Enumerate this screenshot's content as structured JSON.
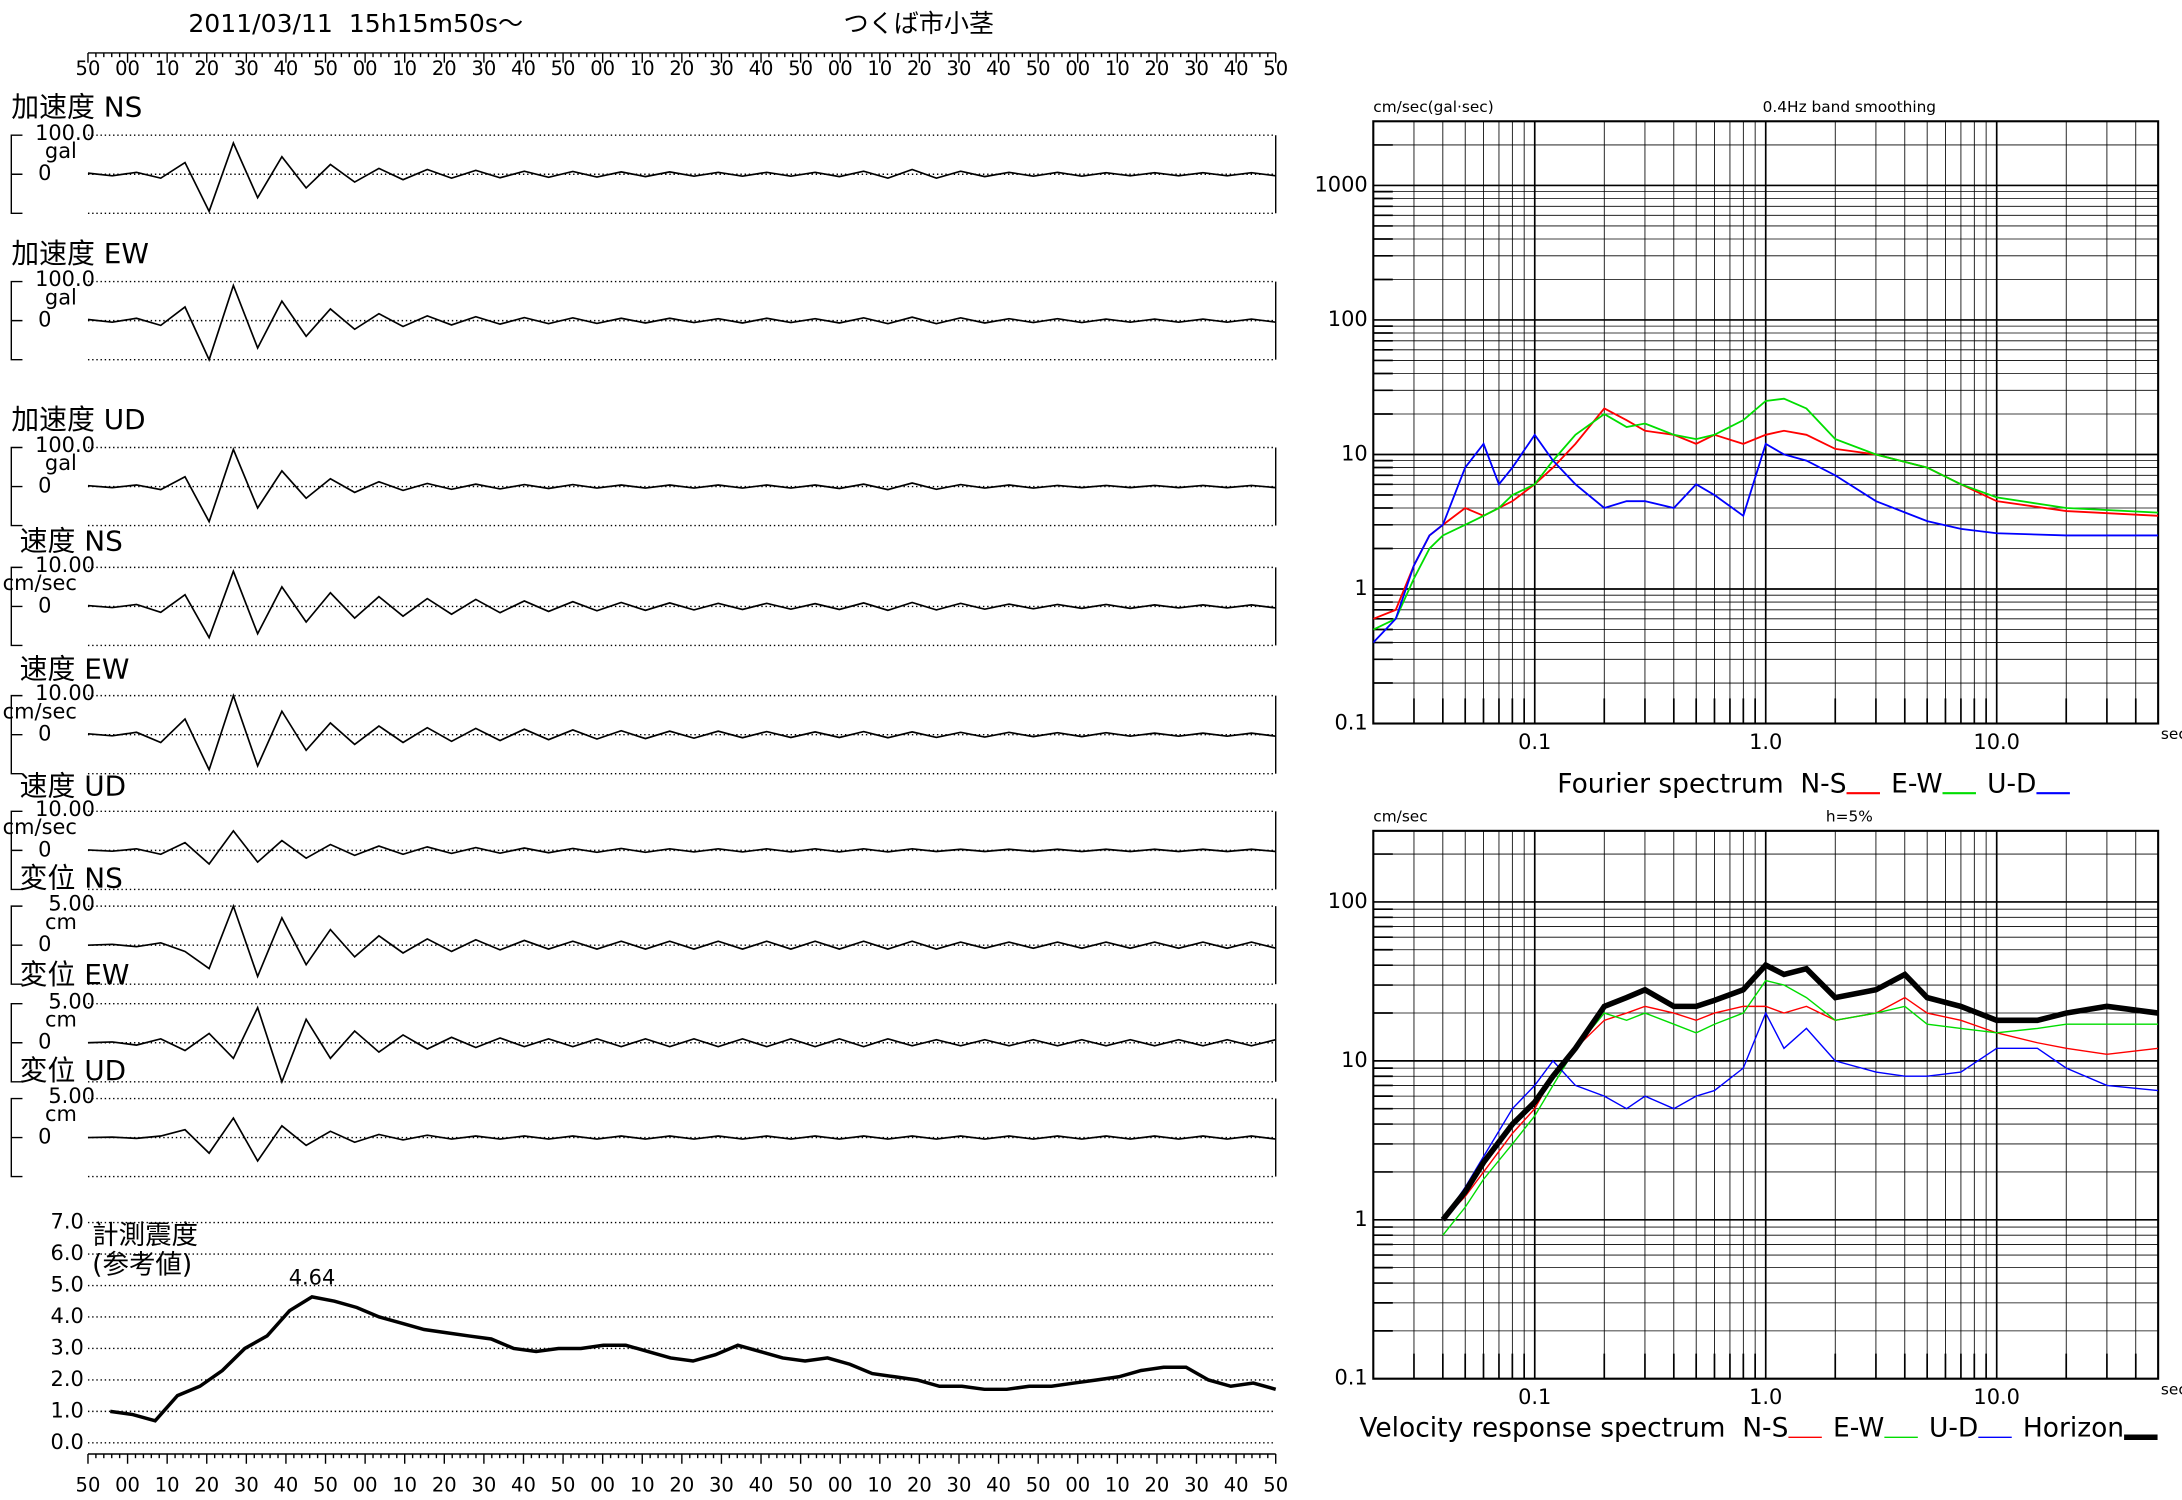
{
  "header": {
    "date": "2011/03/11  15h15m50s～",
    "station": "つくば市小茎"
  },
  "time_labels": [
    "50",
    "00",
    "10",
    "20",
    "30",
    "40",
    "50",
    "00",
    "10",
    "20",
    "30",
    "40",
    "50",
    "00",
    "10",
    "20",
    "30",
    "40",
    "50",
    "00",
    "10",
    "20",
    "30",
    "40",
    "50",
    "00",
    "10",
    "20",
    "30",
    "40",
    "50"
  ],
  "chart_data": [
    {
      "type": "waveform",
      "title": "加速度 NS",
      "unit": "gal",
      "ylim": [
        -100,
        100
      ],
      "yticks": [
        {
          "value": 100,
          "label": "100.0"
        },
        0
      ],
      "color": "#000000",
      "values": [
        3,
        -4,
        5,
        -10,
        30,
        -95,
        80,
        -60,
        45,
        -35,
        25,
        -20,
        15,
        -14,
        12,
        -10,
        10,
        -9,
        8,
        -8,
        7,
        -7,
        6,
        -6,
        6,
        -5,
        5,
        -5,
        5,
        -5,
        5,
        -6,
        8,
        -10,
        12,
        -10,
        8,
        -6,
        5,
        -5,
        5,
        -5,
        4,
        -4,
        4,
        -4,
        4,
        -4,
        4,
        -4
      ]
    },
    {
      "type": "waveform",
      "title": "加速度 EW",
      "unit": "gal",
      "ylim": [
        -100,
        100
      ],
      "yticks": [
        {
          "value": 100,
          "label": "100.0"
        },
        0
      ],
      "color": "#000000",
      "values": [
        3,
        -4,
        6,
        -12,
        35,
        -100,
        90,
        -70,
        50,
        -40,
        30,
        -22,
        18,
        -15,
        12,
        -11,
        10,
        -9,
        8,
        -8,
        7,
        -7,
        6,
        -6,
        6,
        -5,
        5,
        -6,
        6,
        -5,
        5,
        -6,
        7,
        -8,
        9,
        -8,
        7,
        -6,
        5,
        -5,
        5,
        -5,
        4,
        -4,
        4,
        -4,
        4,
        -4,
        4,
        -4
      ]
    },
    {
      "type": "waveform",
      "title": "加速度 UD",
      "unit": "gal",
      "ylim": [
        -100,
        100
      ],
      "yticks": [
        {
          "value": 100,
          "label": "100.0"
        },
        0
      ],
      "color": "#000000",
      "values": [
        2,
        -3,
        4,
        -8,
        25,
        -90,
        95,
        -55,
        40,
        -30,
        20,
        -15,
        12,
        -10,
        8,
        -7,
        6,
        -6,
        5,
        -5,
        5,
        -4,
        4,
        -4,
        4,
        -4,
        4,
        -4,
        4,
        -4,
        4,
        -5,
        6,
        -8,
        9,
        -7,
        5,
        -4,
        4,
        -4,
        3,
        -3,
        3,
        -3,
        3,
        -3,
        3,
        -3,
        3,
        -3
      ]
    },
    {
      "type": "waveform",
      "title": "速度 NS",
      "unit": "cm/sec",
      "ylim": [
        -10,
        10
      ],
      "yticks": [
        {
          "value": 10,
          "label": "10.00"
        },
        0
      ],
      "color": "#000000",
      "values": [
        0.2,
        -0.3,
        0.5,
        -1.5,
        3,
        -8,
        9,
        -7,
        5,
        -4,
        3.5,
        -3,
        2.5,
        -2.5,
        2,
        -2,
        1.8,
        -1.6,
        1.4,
        -1.3,
        1.2,
        -1.1,
        1,
        -1,
        0.9,
        -0.9,
        0.8,
        -0.8,
        0.8,
        -0.7,
        0.7,
        -0.8,
        0.9,
        -1,
        1,
        -0.9,
        0.8,
        -0.7,
        0.6,
        -0.6,
        0.5,
        -0.5,
        0.5,
        -0.5,
        0.4,
        -0.4,
        0.4,
        -0.4,
        0.4,
        -0.4
      ]
    },
    {
      "type": "waveform",
      "title": "速度 EW",
      "unit": "cm/sec",
      "ylim": [
        -10,
        10
      ],
      "yticks": [
        {
          "value": 10,
          "label": "10.00"
        },
        0
      ],
      "color": "#000000",
      "values": [
        0.2,
        -0.3,
        0.6,
        -2,
        4,
        -9,
        10,
        -8,
        6,
        -4,
        3,
        -2.5,
        2.2,
        -2,
        1.8,
        -1.7,
        1.6,
        -1.5,
        1.4,
        -1.3,
        1.2,
        -1.1,
        1,
        -1,
        0.9,
        -0.9,
        0.9,
        -0.8,
        0.8,
        -0.7,
        0.7,
        -0.7,
        0.8,
        -0.8,
        0.7,
        -0.7,
        0.6,
        -0.6,
        0.6,
        -0.5,
        0.5,
        -0.5,
        0.5,
        -0.4,
        0.4,
        -0.4,
        0.4,
        -0.4,
        0.4,
        -0.4
      ]
    },
    {
      "type": "waveform",
      "title": "速度 UD",
      "unit": "cm/sec",
      "ylim": [
        -10,
        10
      ],
      "yticks": [
        {
          "value": 10,
          "label": "10.00"
        },
        0
      ],
      "color": "#000000",
      "values": [
        0.1,
        -0.2,
        0.4,
        -1,
        2,
        -3.5,
        5,
        -3,
        2.5,
        -2,
        1.5,
        -1.3,
        1.1,
        -1,
        0.9,
        -0.8,
        0.7,
        -0.7,
        0.6,
        -0.6,
        0.5,
        -0.5,
        0.5,
        -0.5,
        0.4,
        -0.4,
        0.4,
        -0.4,
        0.4,
        -0.4,
        0.4,
        -0.4,
        0.4,
        -0.4,
        0.4,
        -0.3,
        0.3,
        -0.3,
        0.3,
        -0.3,
        0.3,
        -0.3,
        0.3,
        -0.3,
        0.3,
        -0.3,
        0.3,
        -0.3,
        0.3,
        -0.3
      ]
    },
    {
      "type": "waveform",
      "title": "変位 NS",
      "unit": "cm",
      "ylim": [
        -5,
        5
      ],
      "yticks": [
        {
          "value": 5,
          "label": "5.00"
        },
        0
      ],
      "color": "#000000",
      "values": [
        0,
        0.1,
        -0.2,
        0.3,
        -0.8,
        -3,
        5,
        -4,
        3.5,
        -2.5,
        2,
        -1.5,
        1.2,
        -1,
        0.8,
        -0.8,
        0.7,
        -0.6,
        0.6,
        -0.5,
        0.5,
        -0.5,
        0.5,
        -0.5,
        0.5,
        -0.5,
        0.5,
        -0.5,
        0.5,
        -0.5,
        0.5,
        -0.5,
        0.5,
        -0.5,
        0.5,
        -0.5,
        0.4,
        -0.4,
        0.4,
        -0.4,
        0.4,
        -0.4,
        0.4,
        -0.4,
        0.4,
        -0.4,
        0.4,
        -0.4,
        0.4,
        -0.4
      ]
    },
    {
      "type": "waveform",
      "title": "変位 EW",
      "unit": "cm",
      "ylim": [
        -5,
        5
      ],
      "yticks": [
        {
          "value": 5,
          "label": "5.00"
        },
        0
      ],
      "color": "#000000",
      "values": [
        0,
        0.1,
        -0.3,
        0.5,
        -1,
        1.2,
        -2,
        4.5,
        -5,
        3,
        -2,
        1.5,
        -1.2,
        1,
        -0.8,
        0.7,
        -0.6,
        0.6,
        -0.5,
        0.5,
        -0.5,
        0.5,
        -0.5,
        0.5,
        -0.5,
        0.5,
        -0.5,
        0.5,
        -0.5,
        0.5,
        -0.5,
        0.5,
        -0.5,
        0.5,
        -0.4,
        0.4,
        -0.4,
        0.4,
        -0.4,
        0.4,
        -0.4,
        0.4,
        -0.4,
        0.4,
        -0.4,
        0.4,
        -0.4,
        0.4,
        -0.4,
        0.4
      ]
    },
    {
      "type": "waveform",
      "title": "変位 UD",
      "unit": "cm",
      "ylim": [
        -5,
        5
      ],
      "yticks": [
        {
          "value": 5,
          "label": "5.00"
        },
        0
      ],
      "color": "#000000",
      "values": [
        0,
        0.05,
        -0.1,
        0.2,
        1,
        -2,
        2.5,
        -3,
        1.5,
        -1,
        0.8,
        -0.6,
        0.4,
        -0.3,
        0.3,
        -0.2,
        0.2,
        -0.2,
        0.2,
        -0.2,
        0.2,
        -0.2,
        0.2,
        -0.2,
        0.2,
        -0.2,
        0.2,
        -0.2,
        0.2,
        -0.2,
        0.2,
        -0.2,
        0.2,
        -0.2,
        0.2,
        -0.2,
        0.2,
        -0.2,
        0.2,
        -0.2,
        0.2,
        -0.2,
        0.2,
        -0.2,
        0.2,
        -0.2,
        0.2,
        -0.2,
        0.2,
        -0.2
      ]
    },
    {
      "type": "line",
      "title": "計測震度",
      "subtitle": "(参考値)",
      "annotation": "4.64",
      "color": "#000000",
      "grid": true,
      "ylim": [
        0,
        7
      ],
      "yticks": [
        {
          "value": 0,
          "label": "0.0"
        },
        {
          "value": 1,
          "label": "1.0"
        },
        {
          "value": 2,
          "label": "2.0"
        },
        {
          "value": 3,
          "label": "3.0"
        },
        {
          "value": 4,
          "label": "4.0"
        },
        {
          "value": 5,
          "label": "5.0"
        },
        {
          "value": 6,
          "label": "6.0"
        },
        {
          "value": 7,
          "label": "7.0"
        }
      ],
      "values": [
        1.0,
        0.9,
        0.7,
        1.5,
        1.8,
        2.3,
        3.0,
        3.4,
        4.2,
        4.64,
        4.5,
        4.3,
        4.0,
        3.8,
        3.6,
        3.5,
        3.4,
        3.3,
        3.0,
        2.9,
        3.0,
        3.0,
        3.1,
        3.1,
        2.9,
        2.7,
        2.6,
        2.8,
        3.1,
        2.9,
        2.7,
        2.6,
        2.7,
        2.5,
        2.2,
        2.1,
        2.0,
        1.8,
        1.8,
        1.7,
        1.7,
        1.8,
        1.8,
        1.9,
        2.0,
        2.1,
        2.3,
        2.4,
        2.4,
        2.0,
        1.8,
        1.9,
        1.7
      ]
    },
    {
      "type": "log-line",
      "title": "Fourier spectrum",
      "subtitle": "0.4Hz band smoothing",
      "ylabel": "cm/sec(gal·sec)",
      "xlabel": "sec",
      "log_x": true,
      "log_y": true,
      "grid": true,
      "minor_grid": true,
      "xlim": [
        0.02,
        50
      ],
      "ylim": [
        0.1,
        3000
      ],
      "xticks": [
        0.1,
        {
          "value": 1,
          "label": "1.0"
        },
        {
          "value": 10,
          "label": "10.0"
        }
      ],
      "yticks": [
        0.1,
        1,
        10,
        100,
        1000
      ],
      "x": [
        0.02,
        0.025,
        0.03,
        0.035,
        0.04,
        0.05,
        0.06,
        0.07,
        0.08,
        0.1,
        0.12,
        0.15,
        0.2,
        0.25,
        0.3,
        0.4,
        0.5,
        0.6,
        0.8,
        1.0,
        1.2,
        1.5,
        2,
        3,
        5,
        7,
        10,
        20,
        50
      ],
      "series": [
        {
          "name": "N-S",
          "color": "#ff0000",
          "values": [
            0.6,
            0.7,
            1.5,
            2.5,
            3,
            4,
            3.5,
            4,
            4.5,
            6,
            8,
            12,
            22,
            18,
            15,
            14,
            12,
            14,
            12,
            14,
            15,
            14,
            11,
            10,
            8,
            6,
            4.5,
            3.8,
            3.5
          ]
        },
        {
          "name": "E-W",
          "color": "#00dd00",
          "values": [
            0.5,
            0.6,
            1.2,
            2,
            2.5,
            3,
            3.5,
            4,
            5,
            6,
            9,
            14,
            20,
            16,
            17,
            14,
            13,
            14,
            18,
            25,
            26,
            22,
            13,
            10,
            8,
            6,
            4.8,
            4,
            3.7
          ]
        },
        {
          "name": "U-D",
          "color": "#0000ff",
          "values": [
            0.4,
            0.6,
            1.5,
            2.5,
            3,
            8,
            12,
            6,
            8,
            14,
            9,
            6,
            4,
            4.5,
            4.5,
            4,
            6,
            5,
            3.5,
            12,
            10,
            9,
            7,
            4.5,
            3.2,
            2.8,
            2.6,
            2.5,
            2.5
          ]
        }
      ]
    },
    {
      "type": "log-line",
      "title": "Velocity response spectrum",
      "subtitle": "h=5%",
      "ylabel": "cm/sec",
      "xlabel": "sec",
      "log_x": true,
      "log_y": true,
      "grid": true,
      "minor_grid": true,
      "xlim": [
        0.02,
        50
      ],
      "ylim": [
        0.1,
        280
      ],
      "xticks": [
        0.1,
        {
          "value": 1,
          "label": "1.0"
        },
        {
          "value": 10,
          "label": "10.0"
        }
      ],
      "yticks": [
        0.1,
        1,
        10,
        100
      ],
      "x": [
        0.04,
        0.05,
        0.06,
        0.08,
        0.1,
        0.12,
        0.15,
        0.2,
        0.25,
        0.3,
        0.4,
        0.5,
        0.6,
        0.8,
        1.0,
        1.2,
        1.5,
        2,
        3,
        4,
        5,
        7,
        10,
        15,
        20,
        30,
        50
      ],
      "series": [
        {
          "name": "N-S",
          "color": "#ff0000",
          "line_width": 1,
          "values": [
            1,
            1.4,
            2,
            3.5,
            5,
            8,
            12,
            18,
            20,
            22,
            20,
            18,
            20,
            22,
            22,
            20,
            22,
            18,
            20,
            25,
            20,
            18,
            15,
            13,
            12,
            11,
            12
          ]
        },
        {
          "name": "E-W",
          "color": "#00dd00",
          "line_width": 1,
          "values": [
            0.8,
            1.2,
            1.8,
            3,
            4.5,
            7,
            12,
            20,
            18,
            20,
            17,
            15,
            17,
            20,
            32,
            30,
            25,
            18,
            20,
            22,
            17,
            16,
            15,
            16,
            17,
            17,
            17
          ]
        },
        {
          "name": "U-D",
          "color": "#0000ff",
          "line_width": 1,
          "values": [
            1,
            1.6,
            2.5,
            5,
            7,
            10,
            7,
            6,
            5,
            6,
            5,
            6,
            6.5,
            9,
            20,
            12,
            16,
            10,
            8.5,
            8,
            8,
            8.5,
            12,
            12,
            9,
            7,
            6.5
          ]
        },
        {
          "name": "Horizon",
          "color": "#000000",
          "line_width": 4,
          "values": [
            1,
            1.5,
            2.3,
            4,
            5.5,
            8,
            12,
            22,
            25,
            28,
            22,
            22,
            24,
            28,
            40,
            35,
            38,
            25,
            28,
            35,
            25,
            22,
            18,
            18,
            20,
            22,
            20
          ]
        }
      ]
    }
  ]
}
